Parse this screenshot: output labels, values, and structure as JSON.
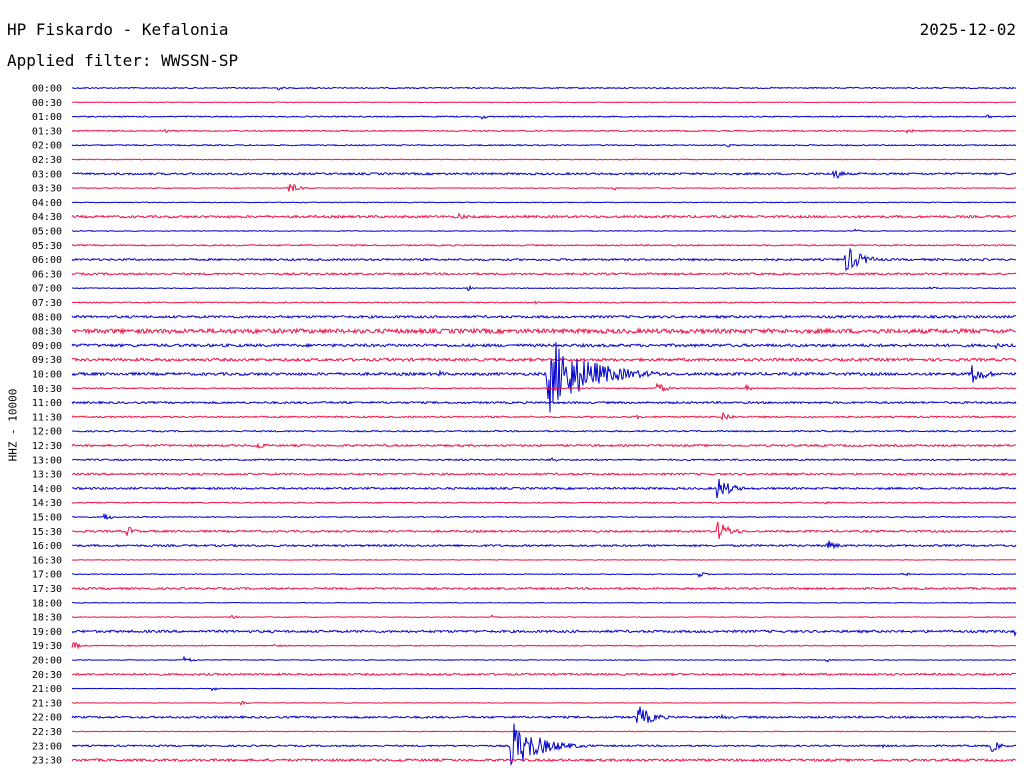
{
  "header": {
    "title": "HP Fiskardo - Kefalonia",
    "filter": "Applied filter: WWSSN-SP",
    "date": "2025-12-02"
  },
  "chart_data": {
    "type": "line",
    "ylabel": "HHZ - 10000",
    "colors": [
      "#0000cc",
      "#ee1144"
    ],
    "rows": [
      {
        "label": "00:00",
        "noise": 0.6,
        "events": [
          [
            0.22,
            2
          ]
        ]
      },
      {
        "label": "00:30",
        "noise": 0.3,
        "events": []
      },
      {
        "label": "01:00",
        "noise": 0.6,
        "events": [
          [
            0.435,
            2.5
          ],
          [
            0.97,
            2.5
          ]
        ]
      },
      {
        "label": "01:30",
        "noise": 0.6,
        "events": [
          [
            0.1,
            2
          ],
          [
            0.885,
            3
          ]
        ]
      },
      {
        "label": "02:00",
        "noise": 0.6,
        "events": [
          [
            0.695,
            2
          ]
        ]
      },
      {
        "label": "02:30",
        "noise": 0.4,
        "events": []
      },
      {
        "label": "03:00",
        "noise": 1.0,
        "events": [
          [
            0.808,
            6
          ]
        ]
      },
      {
        "label": "03:30",
        "noise": 0.4,
        "events": [
          [
            0.23,
            6
          ],
          [
            0.575,
            2
          ]
        ]
      },
      {
        "label": "04:00",
        "noise": 0.4,
        "events": []
      },
      {
        "label": "04:30",
        "noise": 1.2,
        "events": [
          [
            0.41,
            4
          ]
        ]
      },
      {
        "label": "05:00",
        "noise": 0.4,
        "events": [
          [
            0.83,
            2
          ]
        ]
      },
      {
        "label": "05:30",
        "noise": 0.7,
        "events": []
      },
      {
        "label": "06:00",
        "noise": 1.0,
        "events": [
          [
            0.82,
            14
          ]
        ]
      },
      {
        "label": "06:30",
        "noise": 1.0,
        "events": [
          [
            0.25,
            2
          ]
        ]
      },
      {
        "label": "07:00",
        "noise": 0.4,
        "events": [
          [
            0.42,
            2.5
          ],
          [
            0.91,
            2
          ]
        ]
      },
      {
        "label": "07:30",
        "noise": 0.6,
        "events": [
          [
            0.49,
            2
          ]
        ]
      },
      {
        "label": "08:00",
        "noise": 1.2,
        "events": []
      },
      {
        "label": "08:30",
        "noise": 2.2,
        "events": []
      },
      {
        "label": "09:00",
        "noise": 1.4,
        "events": [
          [
            0.98,
            3
          ]
        ]
      },
      {
        "label": "09:30",
        "noise": 1.4,
        "events": []
      },
      {
        "label": "10:00",
        "noise": 1.4,
        "events": [
          [
            0.505,
            40
          ],
          [
            0.39,
            3
          ],
          [
            0.955,
            10
          ]
        ]
      },
      {
        "label": "10:30",
        "noise": 0.6,
        "events": [
          [
            0.62,
            6
          ],
          [
            0.715,
            3
          ]
        ]
      },
      {
        "label": "11:00",
        "noise": 1.0,
        "events": [
          [
            0.29,
            2
          ]
        ]
      },
      {
        "label": "11:30",
        "noise": 0.8,
        "events": [
          [
            0.6,
            2
          ],
          [
            0.69,
            5
          ]
        ]
      },
      {
        "label": "12:00",
        "noise": 0.7,
        "events": []
      },
      {
        "label": "12:30",
        "noise": 1.0,
        "events": [
          [
            0.195,
            5
          ]
        ]
      },
      {
        "label": "13:00",
        "noise": 0.8,
        "events": [
          [
            0.51,
            3
          ]
        ]
      },
      {
        "label": "13:30",
        "noise": 1.0,
        "events": []
      },
      {
        "label": "14:00",
        "noise": 1.0,
        "events": [
          [
            0.685,
            11
          ]
        ]
      },
      {
        "label": "14:30",
        "noise": 0.6,
        "events": [
          [
            0.8,
            2
          ]
        ]
      },
      {
        "label": "15:00",
        "noise": 0.5,
        "events": [
          [
            0.035,
            4
          ]
        ]
      },
      {
        "label": "15:30",
        "noise": 1.0,
        "events": [
          [
            0.06,
            5
          ],
          [
            0.685,
            10
          ]
        ]
      },
      {
        "label": "16:00",
        "noise": 1.0,
        "events": [
          [
            0.8,
            6
          ]
        ]
      },
      {
        "label": "16:30",
        "noise": 0.3,
        "events": []
      },
      {
        "label": "17:00",
        "noise": 0.4,
        "events": [
          [
            0.665,
            3
          ],
          [
            0.88,
            3
          ]
        ]
      },
      {
        "label": "17:30",
        "noise": 1.0,
        "events": []
      },
      {
        "label": "18:00",
        "noise": 0.3,
        "events": []
      },
      {
        "label": "18:30",
        "noise": 0.4,
        "events": [
          [
            0.17,
            2
          ],
          [
            0.445,
            2
          ]
        ]
      },
      {
        "label": "19:00",
        "noise": 1.2,
        "events": [
          [
            0.998,
            5
          ]
        ]
      },
      {
        "label": "19:30",
        "noise": 0.5,
        "events": [
          [
            0.002,
            4
          ],
          [
            0.215,
            2
          ]
        ]
      },
      {
        "label": "20:00",
        "noise": 0.4,
        "events": [
          [
            0.12,
            4
          ],
          [
            0.8,
            2
          ]
        ]
      },
      {
        "label": "20:30",
        "noise": 1.0,
        "events": []
      },
      {
        "label": "21:00",
        "noise": 0.3,
        "events": [
          [
            0.15,
            2
          ]
        ]
      },
      {
        "label": "21:30",
        "noise": 0.3,
        "events": [
          [
            0.18,
            2
          ]
        ]
      },
      {
        "label": "22:00",
        "noise": 1.0,
        "events": [
          [
            0.6,
            12
          ],
          [
            0.69,
            3
          ]
        ]
      },
      {
        "label": "22:30",
        "noise": 0.4,
        "events": []
      },
      {
        "label": "23:00",
        "noise": 0.8,
        "events": [
          [
            0.465,
            26
          ],
          [
            0.975,
            6
          ],
          [
            0.86,
            2
          ]
        ]
      },
      {
        "label": "23:30",
        "noise": 1.2,
        "events": [
          [
            0.345,
            3
          ]
        ]
      }
    ]
  }
}
